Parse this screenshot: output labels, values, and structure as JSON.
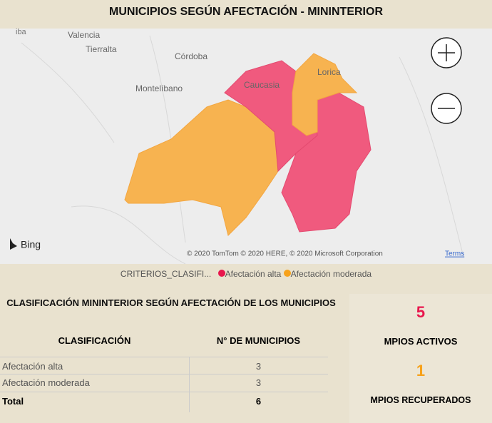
{
  "header": {
    "title": "MUNICIPIOS SEGÚN AFECTACIÓN - MININTERIOR"
  },
  "map": {
    "places": [
      "iba",
      "Valencia",
      "Tierralta",
      "Córdoba",
      "Montelíbano",
      "Caucasia",
      "Lorica"
    ],
    "provider": "Bing",
    "copyright": "© 2020 TomTom © 2020 HERE, © 2020 Microsoft Corporation",
    "terms": "Terms"
  },
  "legend": {
    "title": "CRITERIOS_CLASIFI...",
    "items": [
      "Afectación alta",
      "Afectación moderada"
    ]
  },
  "table": {
    "title": "CLASIFICACIÓN MININTERIOR SEGÚN AFECTACIÓN DE LOS MUNICIPIOS",
    "headers": [
      "CLASIFICACIÓN",
      "N° DE MUNICIPIOS"
    ],
    "rows": [
      [
        "Afectación alta",
        "3"
      ],
      [
        "Afectación moderada",
        "3"
      ]
    ],
    "total": [
      "Total",
      "6"
    ]
  },
  "cards": [
    {
      "value": "5",
      "label": "MPIOS ACTIVOS"
    },
    {
      "value": "1",
      "label": "MPIOS RECUPERADOS"
    }
  ]
}
